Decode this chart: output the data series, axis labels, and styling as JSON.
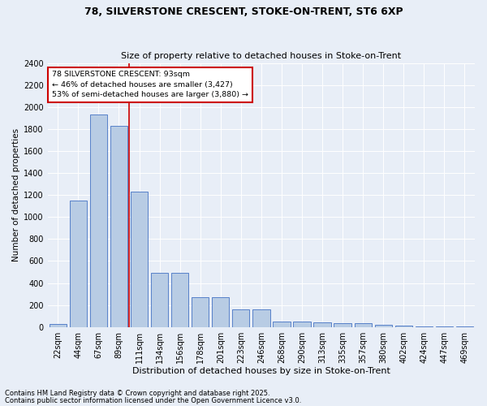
{
  "title1": "78, SILVERSTONE CRESCENT, STOKE-ON-TRENT, ST6 6XP",
  "title2": "Size of property relative to detached houses in Stoke-on-Trent",
  "xlabel": "Distribution of detached houses by size in Stoke-on-Trent",
  "ylabel": "Number of detached properties",
  "categories": [
    "22sqm",
    "44sqm",
    "67sqm",
    "89sqm",
    "111sqm",
    "134sqm",
    "156sqm",
    "178sqm",
    "201sqm",
    "223sqm",
    "246sqm",
    "268sqm",
    "290sqm",
    "313sqm",
    "335sqm",
    "357sqm",
    "380sqm",
    "402sqm",
    "424sqm",
    "447sqm",
    "469sqm"
  ],
  "values": [
    30,
    1150,
    1930,
    1830,
    1230,
    490,
    490,
    270,
    270,
    160,
    160,
    50,
    50,
    45,
    35,
    35,
    20,
    15,
    5,
    5,
    5
  ],
  "bar_color": "#b8cce4",
  "bar_edge_color": "#4472c4",
  "vline_pos": 3.5,
  "vline_color": "#cc0000",
  "annotation_text": "78 SILVERSTONE CRESCENT: 93sqm\n← 46% of detached houses are smaller (3,427)\n53% of semi-detached houses are larger (3,880) →",
  "annotation_box_color": "#ffffff",
  "annotation_box_edge": "#cc0000",
  "background_color": "#e8eef7",
  "ylim": [
    0,
    2400
  ],
  "yticks": [
    0,
    200,
    400,
    600,
    800,
    1000,
    1200,
    1400,
    1600,
    1800,
    2000,
    2200,
    2400
  ],
  "footer1": "Contains HM Land Registry data © Crown copyright and database right 2025.",
  "footer2": "Contains public sector information licensed under the Open Government Licence v3.0.",
  "title_fontsize": 9,
  "subtitle_fontsize": 8,
  "xlabel_fontsize": 8,
  "ylabel_fontsize": 7.5,
  "tick_fontsize": 7,
  "footer_fontsize": 6
}
